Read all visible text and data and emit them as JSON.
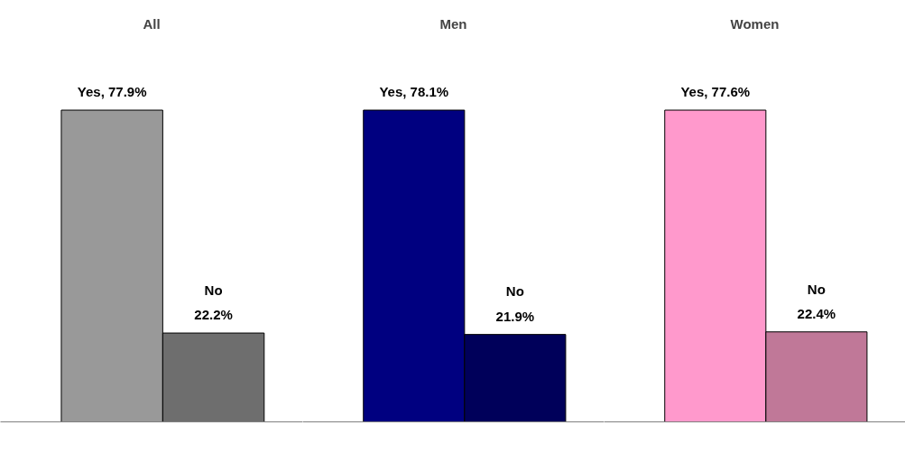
{
  "chart_data": [
    {
      "type": "bar",
      "title": "All",
      "categories": [
        null,
        null
      ],
      "values": [
        77.9,
        22.2
      ],
      "colors": [
        "#999999",
        "#6e6e6e"
      ],
      "value_labels": [
        "Yes, 77.9%",
        "No\n22.2%"
      ]
    },
    {
      "type": "bar",
      "title": "Men",
      "categories": [
        null,
        null
      ],
      "values": [
        78.1,
        21.9
      ],
      "colors": [
        "#000080",
        "#00005a"
      ],
      "value_labels": [
        "Yes, 78.1%",
        "No\n21.9%"
      ]
    },
    {
      "type": "bar",
      "title": "Women",
      "categories": [
        null,
        null
      ],
      "values": [
        77.6,
        22.4
      ],
      "colors": [
        "#ff99cc",
        "#c07898"
      ],
      "value_labels": [
        "Yes, 77.6%",
        "No\n22.4%"
      ]
    }
  ]
}
